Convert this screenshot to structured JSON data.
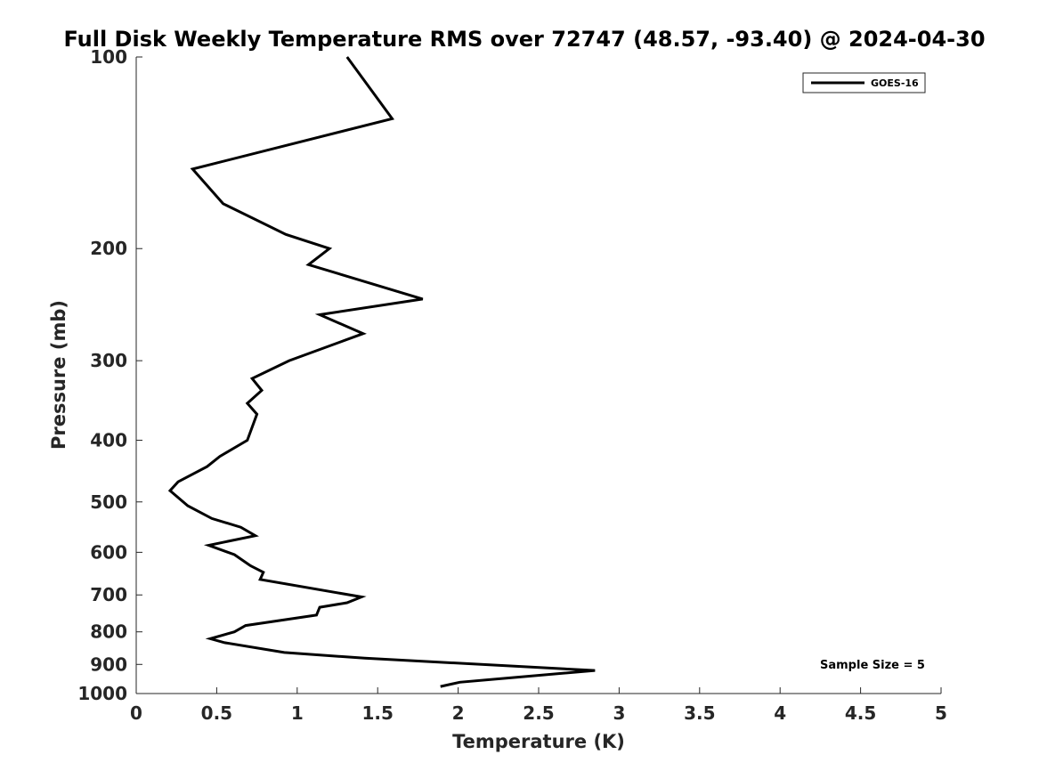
{
  "chart_data": {
    "type": "line",
    "title": "Full Disk Weekly Temperature RMS over 72747 (48.57, -93.40) @ 2024-04-30",
    "xlabel": "Temperature (K)",
    "ylabel": "Pressure (mb)",
    "xlim": [
      0,
      5
    ],
    "ylim": [
      100,
      1000
    ],
    "y_scale": "log",
    "y_reversed": true,
    "x_ticks": [
      0,
      0.5,
      1,
      1.5,
      2,
      2.5,
      3,
      3.5,
      4,
      4.5,
      5
    ],
    "x_tick_labels": [
      "0",
      "0.5",
      "1",
      "1.5",
      "2",
      "2.5",
      "3",
      "3.5",
      "4",
      "4.5",
      "5"
    ],
    "y_ticks": [
      100,
      200,
      300,
      400,
      500,
      600,
      700,
      800,
      900,
      1000
    ],
    "y_tick_labels": [
      "100",
      "200",
      "300",
      "400",
      "500",
      "600",
      "700",
      "800",
      "900",
      "1000"
    ],
    "grid": false,
    "legend_position": "top-right",
    "series": [
      {
        "name": "GOES-16",
        "color": "#000000",
        "points": [
          [
            1.31,
            100
          ],
          [
            1.59,
            125
          ],
          [
            0.35,
            150
          ],
          [
            0.54,
            170
          ],
          [
            0.93,
            190
          ],
          [
            1.2,
            200
          ],
          [
            1.07,
            212
          ],
          [
            1.78,
            240
          ],
          [
            1.14,
            254
          ],
          [
            1.41,
            272
          ],
          [
            0.95,
            300
          ],
          [
            0.72,
            320
          ],
          [
            0.78,
            334
          ],
          [
            0.69,
            350
          ],
          [
            0.75,
            364
          ],
          [
            0.69,
            400
          ],
          [
            0.52,
            424
          ],
          [
            0.44,
            440
          ],
          [
            0.26,
            465
          ],
          [
            0.21,
            480
          ],
          [
            0.32,
            507
          ],
          [
            0.47,
            531
          ],
          [
            0.65,
            548
          ],
          [
            0.74,
            565
          ],
          [
            0.45,
            585
          ],
          [
            0.61,
            605
          ],
          [
            0.71,
            630
          ],
          [
            0.79,
            645
          ],
          [
            0.77,
            662
          ],
          [
            1.4,
            705
          ],
          [
            1.31,
            720
          ],
          [
            1.14,
            732
          ],
          [
            1.12,
            753
          ],
          [
            0.68,
            782
          ],
          [
            0.61,
            800
          ],
          [
            0.46,
            820
          ],
          [
            0.55,
            832
          ],
          [
            0.92,
            862
          ],
          [
            1.42,
            880
          ],
          [
            2.85,
            920
          ],
          [
            2.01,
            960
          ],
          [
            1.89,
            975
          ]
        ]
      }
    ],
    "annotation": "Sample Size = 5"
  }
}
